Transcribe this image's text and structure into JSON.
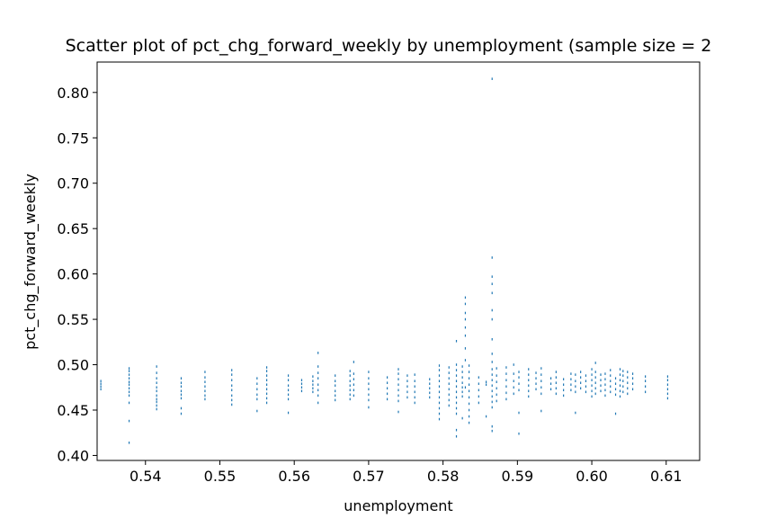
{
  "chart_data": {
    "type": "scatter",
    "title": "Scatter plot of pct_chg_forward_weekly by unemployment (sample size = 2",
    "xlabel": "unemployment",
    "ylabel": "pct_chg_forward_weekly",
    "xlim": [
      0.5335,
      0.6145
    ],
    "ylim": [
      0.3945,
      0.8335
    ],
    "xticks": [
      0.54,
      0.55,
      0.56,
      0.57,
      0.58,
      0.59,
      0.6,
      0.61
    ],
    "xtick_labels": [
      "0.54",
      "0.55",
      "0.56",
      "0.57",
      "0.58",
      "0.59",
      "0.60",
      "0.61"
    ],
    "yticks": [
      0.4,
      0.45,
      0.5,
      0.55,
      0.6,
      0.65,
      0.7,
      0.75,
      0.8
    ],
    "ytick_labels": [
      "0.40",
      "0.45",
      "0.50",
      "0.55",
      "0.60",
      "0.65",
      "0.70",
      "0.75",
      "0.80"
    ],
    "marker_color": "#1f77b4",
    "grid": false,
    "columns": [
      {
        "x": 0.534,
        "y": [
          0.473,
          0.476,
          0.479,
          0.482
        ]
      },
      {
        "x": 0.5378,
        "y": [
          0.414,
          0.438,
          0.458,
          0.466,
          0.47,
          0.474,
          0.478,
          0.481,
          0.485,
          0.489,
          0.493,
          0.496
        ]
      },
      {
        "x": 0.5415,
        "y": [
          0.451,
          0.455,
          0.459,
          0.462,
          0.466,
          0.471,
          0.475,
          0.48,
          0.485,
          0.491,
          0.498
        ]
      },
      {
        "x": 0.5448,
        "y": [
          0.446,
          0.452,
          0.463,
          0.467,
          0.471,
          0.476,
          0.48,
          0.485
        ]
      },
      {
        "x": 0.548,
        "y": [
          0.462,
          0.466,
          0.471,
          0.476,
          0.481,
          0.486,
          0.492
        ]
      },
      {
        "x": 0.5516,
        "y": [
          0.456,
          0.461,
          0.466,
          0.472,
          0.477,
          0.483,
          0.489,
          0.494
        ]
      },
      {
        "x": 0.555,
        "y": [
          0.449,
          0.462,
          0.467,
          0.473,
          0.479,
          0.485
        ]
      },
      {
        "x": 0.5563,
        "y": [
          0.458,
          0.463,
          0.468,
          0.473,
          0.478,
          0.483,
          0.488,
          0.493,
          0.497
        ]
      },
      {
        "x": 0.5592,
        "y": [
          0.447,
          0.462,
          0.467,
          0.472,
          0.477,
          0.483,
          0.488
        ]
      },
      {
        "x": 0.561,
        "y": [
          0.471,
          0.475,
          0.479,
          0.483
        ]
      },
      {
        "x": 0.5625,
        "y": [
          0.47,
          0.474,
          0.478,
          0.482,
          0.487
        ]
      },
      {
        "x": 0.5632,
        "y": [
          0.458,
          0.466,
          0.472,
          0.478,
          0.485,
          0.491,
          0.498,
          0.513
        ]
      },
      {
        "x": 0.5655,
        "y": [
          0.461,
          0.466,
          0.471,
          0.477,
          0.482,
          0.488
        ]
      },
      {
        "x": 0.5675,
        "y": [
          0.462,
          0.467,
          0.472,
          0.477,
          0.482,
          0.488,
          0.493
        ]
      },
      {
        "x": 0.568,
        "y": [
          0.466,
          0.472,
          0.478,
          0.484,
          0.49,
          0.503
        ]
      },
      {
        "x": 0.57,
        "y": [
          0.453,
          0.461,
          0.467,
          0.473,
          0.479,
          0.485,
          0.492
        ]
      },
      {
        "x": 0.5725,
        "y": [
          0.462,
          0.468,
          0.474,
          0.48,
          0.486
        ]
      },
      {
        "x": 0.574,
        "y": [
          0.448,
          0.46,
          0.466,
          0.472,
          0.478,
          0.484,
          0.49,
          0.495
        ]
      },
      {
        "x": 0.5752,
        "y": [
          0.464,
          0.47,
          0.476,
          0.482,
          0.488
        ]
      },
      {
        "x": 0.5762,
        "y": [
          0.458,
          0.464,
          0.47,
          0.476,
          0.482,
          0.489
        ]
      },
      {
        "x": 0.5782,
        "y": [
          0.464,
          0.469,
          0.474,
          0.479,
          0.484
        ]
      },
      {
        "x": 0.5795,
        "y": [
          0.44,
          0.446,
          0.452,
          0.458,
          0.464,
          0.47,
          0.476,
          0.482,
          0.488,
          0.494,
          0.499
        ]
      },
      {
        "x": 0.5808,
        "y": [
          0.455,
          0.461,
          0.467,
          0.473,
          0.479,
          0.485,
          0.491,
          0.497
        ]
      },
      {
        "x": 0.5818,
        "y": [
          0.421,
          0.428,
          0.446,
          0.452,
          0.458,
          0.464,
          0.47,
          0.476,
          0.482,
          0.488,
          0.494,
          0.5,
          0.526
        ]
      },
      {
        "x": 0.5826,
        "y": [
          0.441,
          0.465,
          0.47,
          0.475,
          0.48,
          0.486,
          0.492,
          0.498
        ]
      },
      {
        "x": 0.583,
        "y": [
          0.475,
          0.505,
          0.518,
          0.532,
          0.541,
          0.55,
          0.557,
          0.567,
          0.574
        ]
      },
      {
        "x": 0.5835,
        "y": [
          0.436,
          0.443,
          0.45,
          0.457,
          0.464,
          0.471,
          0.478,
          0.485,
          0.492,
          0.499
        ]
      },
      {
        "x": 0.5848,
        "y": [
          0.458,
          0.465,
          0.472,
          0.479,
          0.486
        ]
      },
      {
        "x": 0.5858,
        "y": [
          0.443,
          0.478,
          0.481
        ]
      },
      {
        "x": 0.5866,
        "y": [
          0.427,
          0.432,
          0.453,
          0.459,
          0.465,
          0.471,
          0.477,
          0.483,
          0.489,
          0.495,
          0.503,
          0.512,
          0.528,
          0.55,
          0.56,
          0.579,
          0.589,
          0.597,
          0.618,
          0.815
        ]
      },
      {
        "x": 0.5872,
        "y": [
          0.46,
          0.467,
          0.474,
          0.481,
          0.488,
          0.496
        ]
      },
      {
        "x": 0.5885,
        "y": [
          0.462,
          0.469,
          0.476,
          0.483,
          0.49,
          0.497
        ]
      },
      {
        "x": 0.5895,
        "y": [
          0.468,
          0.475,
          0.482,
          0.49,
          0.5
        ]
      },
      {
        "x": 0.5902,
        "y": [
          0.424,
          0.447,
          0.472,
          0.479,
          0.486,
          0.492
        ]
      },
      {
        "x": 0.5915,
        "y": [
          0.465,
          0.471,
          0.477,
          0.483,
          0.489,
          0.495
        ]
      },
      {
        "x": 0.5925,
        "y": [
          0.473,
          0.479,
          0.485,
          0.491
        ]
      },
      {
        "x": 0.5932,
        "y": [
          0.449,
          0.468,
          0.475,
          0.482,
          0.489,
          0.496
        ]
      },
      {
        "x": 0.5945,
        "y": [
          0.473,
          0.479,
          0.485
        ]
      },
      {
        "x": 0.5952,
        "y": [
          0.468,
          0.474,
          0.48,
          0.486,
          0.492
        ]
      },
      {
        "x": 0.5962,
        "y": [
          0.466,
          0.472,
          0.478,
          0.484
        ]
      },
      {
        "x": 0.5972,
        "y": [
          0.472,
          0.478,
          0.484,
          0.49
        ]
      },
      {
        "x": 0.5978,
        "y": [
          0.447,
          0.47,
          0.476,
          0.482,
          0.489
        ]
      },
      {
        "x": 0.5985,
        "y": [
          0.474,
          0.48,
          0.486,
          0.492
        ]
      },
      {
        "x": 0.5992,
        "y": [
          0.47,
          0.476,
          0.482,
          0.488
        ]
      },
      {
        "x": 0.6,
        "y": [
          0.465,
          0.471,
          0.477,
          0.483,
          0.489,
          0.495
        ]
      },
      {
        "x": 0.6005,
        "y": [
          0.468,
          0.474,
          0.48,
          0.486,
          0.492,
          0.502
        ]
      },
      {
        "x": 0.6012,
        "y": [
          0.471,
          0.477,
          0.483,
          0.489
        ]
      },
      {
        "x": 0.6018,
        "y": [
          0.466,
          0.472,
          0.478,
          0.484,
          0.49
        ]
      },
      {
        "x": 0.6025,
        "y": [
          0.47,
          0.476,
          0.482,
          0.488,
          0.494
        ]
      },
      {
        "x": 0.6032,
        "y": [
          0.446,
          0.467,
          0.473,
          0.479,
          0.485
        ]
      },
      {
        "x": 0.6038,
        "y": [
          0.465,
          0.471,
          0.477,
          0.483,
          0.489,
          0.495
        ]
      },
      {
        "x": 0.6042,
        "y": [
          0.47,
          0.476,
          0.482,
          0.488,
          0.493
        ]
      },
      {
        "x": 0.6048,
        "y": [
          0.468,
          0.474,
          0.48,
          0.486,
          0.492
        ]
      },
      {
        "x": 0.6055,
        "y": [
          0.473,
          0.479,
          0.485,
          0.49
        ]
      },
      {
        "x": 0.6072,
        "y": [
          0.47,
          0.476,
          0.482,
          0.487
        ]
      },
      {
        "x": 0.6102,
        "y": [
          0.463,
          0.468,
          0.473,
          0.478,
          0.483,
          0.487
        ]
      }
    ]
  }
}
